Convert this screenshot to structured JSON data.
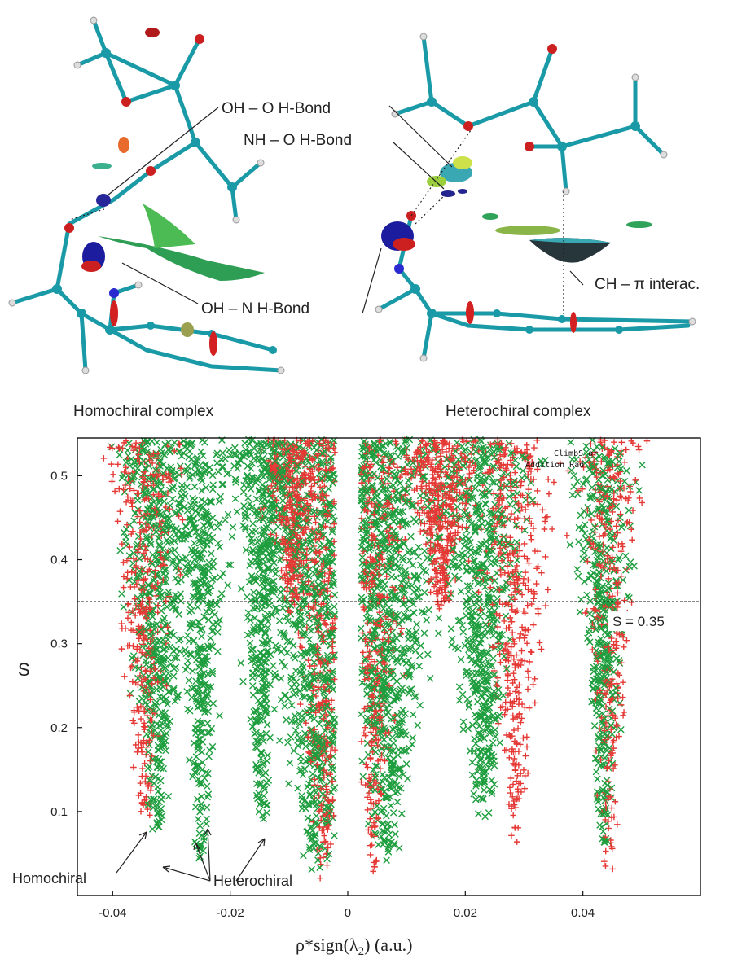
{
  "molecules": {
    "left_title": "Homochiral complex",
    "right_title": "Heterochiral complex",
    "annotations": {
      "oh_o": "OH – O  H-Bond",
      "nh_o": "NH – O  H-Bond",
      "oh_n": "OH – N  H-Bond",
      "ch_pi": "CH – π  interac."
    }
  },
  "chart_data": {
    "type": "scatter",
    "xlabel": "ρ*sign(λ2) (a.u.)",
    "ylabel": "S",
    "xlim": [
      -0.046,
      0.06
    ],
    "ylim": [
      0.0,
      0.545
    ],
    "x_ticks": [
      -0.04,
      -0.02,
      0,
      0.02,
      0.04
    ],
    "x_tick_labels": [
      "-0.04",
      "-0.02",
      "0",
      "0.02",
      "0.04"
    ],
    "y_ticks": [
      0.1,
      0.2,
      0.3,
      0.4,
      0.5
    ],
    "y_tick_labels": [
      "0.1",
      "0.2",
      "0.3",
      "0.4",
      "0.5"
    ],
    "reference_line": {
      "y": 0.35,
      "label": "S = 0.35",
      "style": "dashed"
    },
    "series": [
      {
        "name": "Homochiral",
        "marker": "+",
        "color": "#e53935",
        "spikes": [
          {
            "x_center": -0.0345,
            "min_s": 0.08,
            "width": 0.0035
          },
          {
            "x_center": -0.0095,
            "min_s": 0.33,
            "width": 0.003
          },
          {
            "x_center": -0.004,
            "min_s": 0.02,
            "width": 0.004
          },
          {
            "x_center": 0.0045,
            "min_s": 0.02,
            "width": 0.0035
          },
          {
            "x_center": 0.016,
            "min_s": 0.34,
            "width": 0.004
          },
          {
            "x_center": 0.0285,
            "min_s": 0.06,
            "width": 0.004
          },
          {
            "x_center": 0.0445,
            "min_s": 0.02,
            "width": 0.003
          }
        ]
      },
      {
        "name": "Heterochiral",
        "marker": "×",
        "color": "#1e9e3e",
        "spikes": [
          {
            "x_center": -0.0325,
            "min_s": 0.06,
            "width": 0.004
          },
          {
            "x_center": -0.025,
            "min_s": 0.04,
            "width": 0.003
          },
          {
            "x_center": -0.0145,
            "min_s": 0.08,
            "width": 0.003
          },
          {
            "x_center": -0.005,
            "min_s": 0.03,
            "width": 0.0075
          },
          {
            "x_center": 0.0065,
            "min_s": 0.04,
            "width": 0.0065
          },
          {
            "x_center": 0.023,
            "min_s": 0.08,
            "width": 0.0045
          },
          {
            "x_center": 0.0435,
            "min_s": 0.05,
            "width": 0.003
          }
        ]
      }
    ],
    "annotations": {
      "homochiral_label": "Homochiral",
      "heterochiral_label": "Heterochiral"
    },
    "legend_residue": [
      "ClimbS_ar",
      "Addition Rad"
    ]
  }
}
